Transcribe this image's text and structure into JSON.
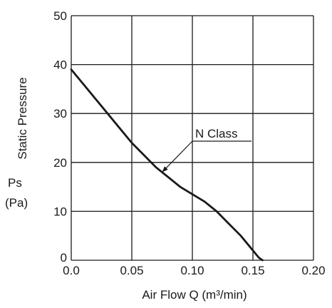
{
  "chart_data": {
    "type": "line",
    "xlabel": "Air Flow  Q   (m³/min)",
    "ylabel_lines": [
      "Static Pressure",
      "Ps",
      "(Pa)"
    ],
    "xlim": [
      0.0,
      0.2
    ],
    "ylim": [
      0,
      50
    ],
    "xticks": [
      0.0,
      0.05,
      0.1,
      0.15,
      0.2
    ],
    "xtick_labels": [
      "0.0",
      "0.05",
      "0.10",
      "0.15",
      "0.20"
    ],
    "yticks": [
      0,
      10,
      20,
      30,
      40,
      50
    ],
    "ytick_labels": [
      "0",
      "10",
      "20",
      "30",
      "40",
      "50"
    ],
    "grid": true,
    "annotation": {
      "text": "N Class",
      "points_to": {
        "x": 0.075,
        "y": 18
      }
    },
    "series": [
      {
        "name": "N Class",
        "color": "#1a1a1a",
        "points": [
          {
            "x": 0.0,
            "y": 39
          },
          {
            "x": 0.01,
            "y": 36
          },
          {
            "x": 0.02,
            "y": 33
          },
          {
            "x": 0.03,
            "y": 30
          },
          {
            "x": 0.04,
            "y": 27
          },
          {
            "x": 0.05,
            "y": 24
          },
          {
            "x": 0.06,
            "y": 21.5
          },
          {
            "x": 0.07,
            "y": 19
          },
          {
            "x": 0.08,
            "y": 17
          },
          {
            "x": 0.09,
            "y": 15
          },
          {
            "x": 0.1,
            "y": 13.5
          },
          {
            "x": 0.11,
            "y": 12
          },
          {
            "x": 0.12,
            "y": 10
          },
          {
            "x": 0.13,
            "y": 7.5
          },
          {
            "x": 0.14,
            "y": 5
          },
          {
            "x": 0.15,
            "y": 2
          },
          {
            "x": 0.155,
            "y": 0.5
          },
          {
            "x": 0.158,
            "y": 0
          }
        ]
      }
    ]
  }
}
